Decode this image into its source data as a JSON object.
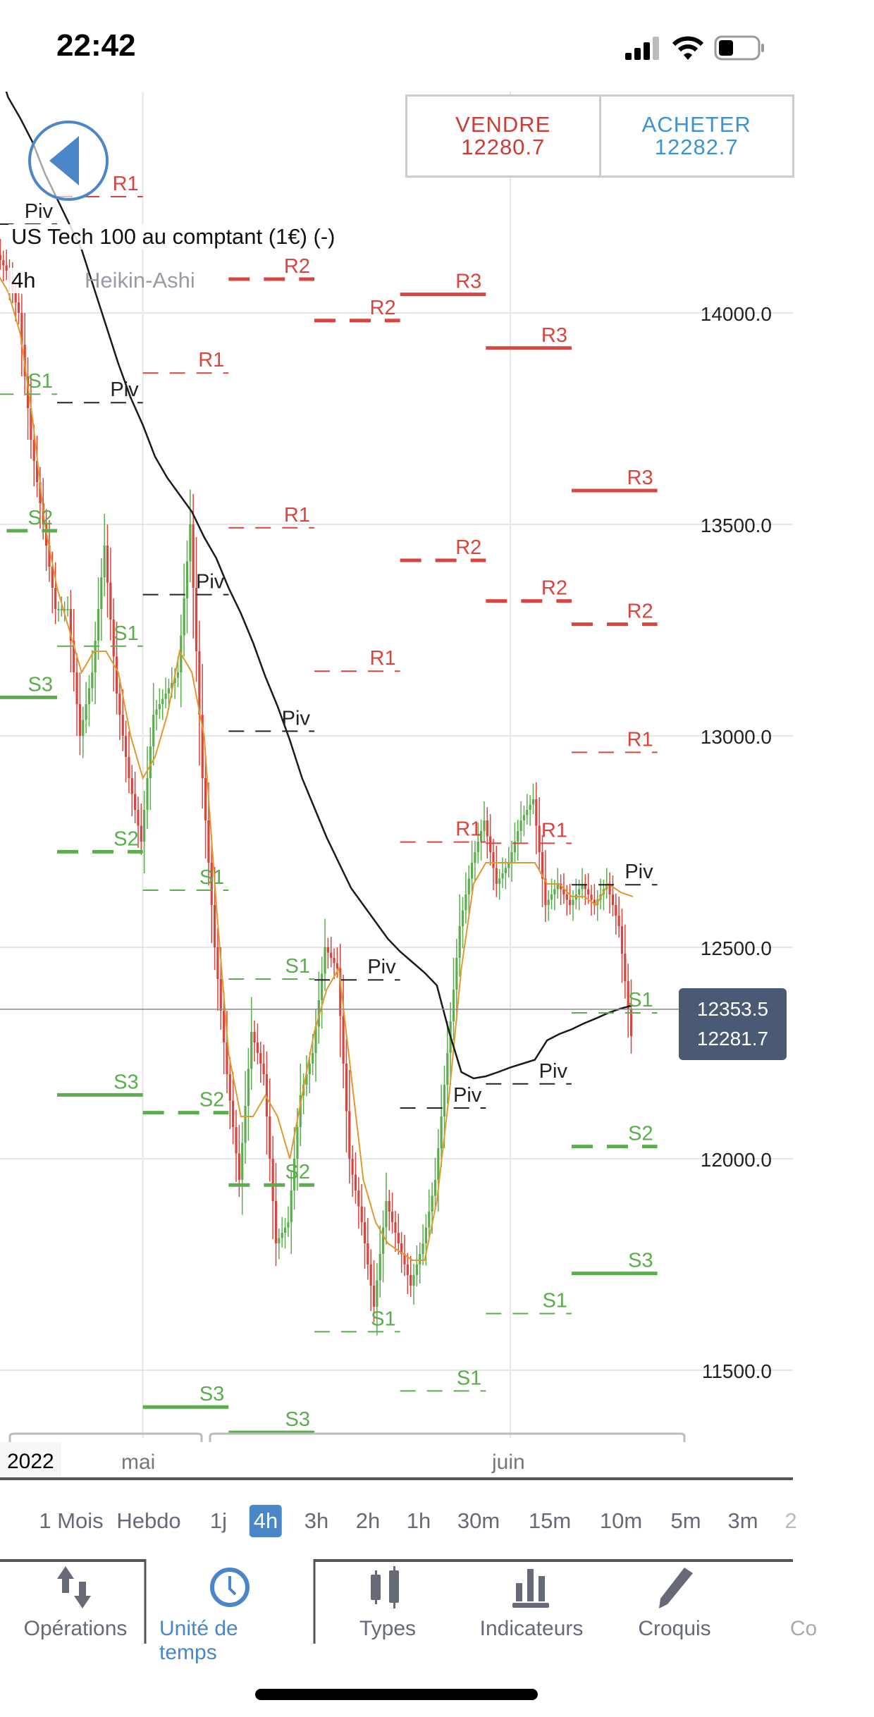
{
  "status_bar": {
    "time": "22:42",
    "icons": [
      "signal-icon",
      "wifi-icon",
      "battery-icon"
    ]
  },
  "instrument": {
    "title": "US Tech 100 au comptant (1€) (-)",
    "timeframe": "4h",
    "chart_type": "Heikin-Ashi"
  },
  "trade": {
    "sell_label": "VENDRE",
    "sell_price": "12280.7",
    "buy_label": "ACHETER",
    "buy_price": "12282.7",
    "sell_color": "#cf3b35",
    "buy_color": "#3c93d4"
  },
  "price_badge": {
    "last": "12353.5",
    "bid": "12281.7"
  },
  "date_axis": {
    "year": "2022",
    "months": [
      {
        "label": "mai",
        "date": "2022-05-02"
      },
      {
        "label": "juin",
        "date": "2022-06-01"
      }
    ]
  },
  "timeframes": {
    "items": [
      "1 Mois",
      "Hebdo",
      "1j",
      "4h",
      "3h",
      "2h",
      "1h",
      "30m",
      "15m",
      "10m",
      "5m",
      "3m",
      "2"
    ],
    "selected": "4h"
  },
  "tabs": {
    "items": [
      {
        "label": "Opérations",
        "icon": "arrows-up-down-icon"
      },
      {
        "label": "Unité de temps",
        "icon": "clock-icon"
      },
      {
        "label": "Types",
        "icon": "candlestick-icon"
      },
      {
        "label": "Indicateurs",
        "icon": "bar-chart-icon"
      },
      {
        "label": "Croquis",
        "icon": "pencil-icon"
      },
      {
        "label": "Co",
        "icon": ""
      }
    ],
    "selected": "Unité de temps"
  },
  "chart_data": {
    "type": "candlestick",
    "ylim": [
      11300,
      14750
    ],
    "y_ticks": [
      14000,
      13500,
      13000,
      12500,
      12000,
      11500
    ],
    "y_tick_labels": [
      "14000.0",
      "13500.0",
      "13000.0",
      "12500.0",
      "12000.0",
      "11500.0"
    ],
    "grid": true,
    "current_price": 12353.5,
    "colors": {
      "up": "#5cad4e",
      "down": "#d9443f",
      "resistance": "#d9443f",
      "support": "#5cad4e",
      "pivot": "#222222",
      "slow_ma": "#1a1a1a",
      "fast_ma": "#e09a2c"
    },
    "dates": [
      "2022-04-19",
      "2022-04-20",
      "2022-04-21",
      "2022-04-22",
      "2022-04-23",
      "2022-04-24",
      "2022-04-25",
      "2022-04-26",
      "2022-04-27",
      "2022-04-28",
      "2022-04-29",
      "2022-04-30",
      "2022-05-01",
      "2022-05-02",
      "2022-05-03",
      "2022-05-04",
      "2022-05-05",
      "2022-05-06",
      "2022-05-07",
      "2022-05-08",
      "2022-05-09",
      "2022-05-10",
      "2022-05-11",
      "2022-05-12",
      "2022-05-13",
      "2022-05-14",
      "2022-05-15",
      "2022-05-16",
      "2022-05-17",
      "2022-05-18",
      "2022-05-19",
      "2022-05-20",
      "2022-05-21",
      "2022-05-22",
      "2022-05-23",
      "2022-05-24",
      "2022-05-25",
      "2022-05-26",
      "2022-05-27",
      "2022-05-28",
      "2022-05-29",
      "2022-05-30",
      "2022-05-31",
      "2022-06-01",
      "2022-06-02",
      "2022-06-03",
      "2022-06-04",
      "2022-06-05",
      "2022-06-06",
      "2022-06-07",
      "2022-06-08",
      "2022-06-09",
      "2022-06-10",
      "2022-06-11"
    ],
    "close": [
      14100,
      14150,
      14100,
      14000,
      13700,
      13500,
      13300,
      13300,
      13000,
      13150,
      13450,
      13100,
      12900,
      12750,
      13050,
      13100,
      13150,
      13500,
      12900,
      12500,
      12200,
      11950,
      12300,
      12200,
      11800,
      11850,
      12150,
      12250,
      12500,
      12450,
      12000,
      11850,
      11650,
      11900,
      11800,
      11700,
      11800,
      11950,
      12250,
      12550,
      12700,
      12800,
      12650,
      12700,
      12800,
      12850,
      12600,
      12650,
      12600,
      12650,
      12600,
      12650,
      12550,
      12290
    ],
    "slow_ma": [
      null,
      14600,
      14510,
      14460,
      14404,
      14330,
      14270,
      14210,
      14150,
      14060,
      13970,
      13880,
      13800,
      13735,
      13660,
      13610,
      13570,
      13530,
      13470,
      13420,
      13350,
      13290,
      13220,
      13140,
      13070,
      12990,
      12900,
      12830,
      12760,
      12700,
      12640,
      12600,
      12560,
      12520,
      12490,
      12465,
      12440,
      12410,
      12300,
      12205,
      12190,
      12195,
      12205,
      12216,
      12225,
      12234,
      12280,
      12295,
      12306,
      12320,
      12332,
      12345,
      12355,
      12363
    ],
    "fast_ma": [
      13950,
      14100,
      14050,
      13950,
      13750,
      13500,
      13350,
      13250,
      13150,
      13200,
      13200,
      13150,
      13000,
      12900,
      12950,
      13050,
      13200,
      13150,
      13000,
      12600,
      12250,
      12100,
      12100,
      12150,
      12100,
      12000,
      12150,
      12300,
      12400,
      12450,
      12200,
      11950,
      11850,
      11800,
      11780,
      11760,
      11760,
      11900,
      12150,
      12450,
      12650,
      12700,
      12700,
      12700,
      12700,
      12700,
      12650,
      12650,
      12620,
      12620,
      12600,
      12650,
      12630,
      12620
    ],
    "pivot_weeks": [
      {
        "start": "2022-04-18",
        "end": "2022-04-25",
        "levels": {
          "Piv": 14210,
          "S1": 13808,
          "S2": 13485,
          "S3": 13091
        }
      },
      {
        "start": "2022-04-25",
        "end": "2022-05-02",
        "levels": {
          "R1": 14275,
          "Piv": 13788,
          "S1": 13212,
          "S2": 12726,
          "S3": 12151
        }
      },
      {
        "start": "2022-05-02",
        "end": "2022-05-09",
        "levels": {
          "R1": 13858,
          "Piv": 13334,
          "S1": 12635,
          "S2": 12109,
          "S3": 11413
        }
      },
      {
        "start": "2022-05-09",
        "end": "2022-05-16",
        "levels": {
          "R2": 14080,
          "R1": 13492,
          "Piv": 13011,
          "S1": 12425,
          "S2": 11938,
          "S3": 11353
        }
      },
      {
        "start": "2022-05-16",
        "end": "2022-05-23",
        "levels": {
          "R2": 13982,
          "R1": 13153,
          "Piv": 12423,
          "S1": 11591
        }
      },
      {
        "start": "2022-05-23",
        "end": "2022-05-30",
        "levels": {
          "R3": 14044,
          "R2": 13415,
          "R1": 12749,
          "Piv": 12120,
          "S1": 11451
        }
      },
      {
        "start": "2022-05-30",
        "end": "2022-06-06",
        "levels": {
          "R3": 13917,
          "R2": 13319,
          "R1": 12746,
          "Piv": 12177,
          "S1": 11634
        }
      },
      {
        "start": "2022-06-06",
        "end": "2022-06-13",
        "levels": {
          "R3": 13580,
          "R2": 13264,
          "R1": 12961,
          "Piv": 12648,
          "S1": 12345,
          "S2": 12029,
          "S3": 11729
        }
      }
    ]
  }
}
